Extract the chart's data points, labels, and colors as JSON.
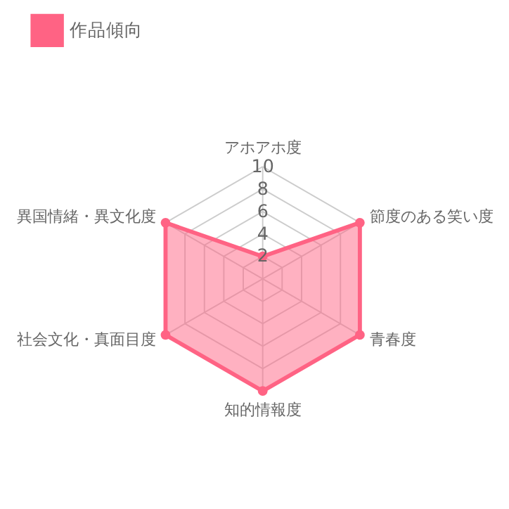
{
  "chart_data": {
    "type": "radar",
    "categories": [
      "アホアホ度",
      "節度のある笑い度",
      "青春度",
      "知的情報度",
      "社会文化・真面目度",
      "異国情緒・異文化度"
    ],
    "series": [
      {
        "name": "作品傾向",
        "color": "#ff6384",
        "values": [
          2,
          10,
          10,
          10,
          10,
          10
        ]
      }
    ],
    "ylim": [
      0,
      10
    ],
    "yticks": [
      2,
      4,
      6,
      8,
      10
    ],
    "grid": true,
    "legend": "top",
    "marker": "circle"
  }
}
